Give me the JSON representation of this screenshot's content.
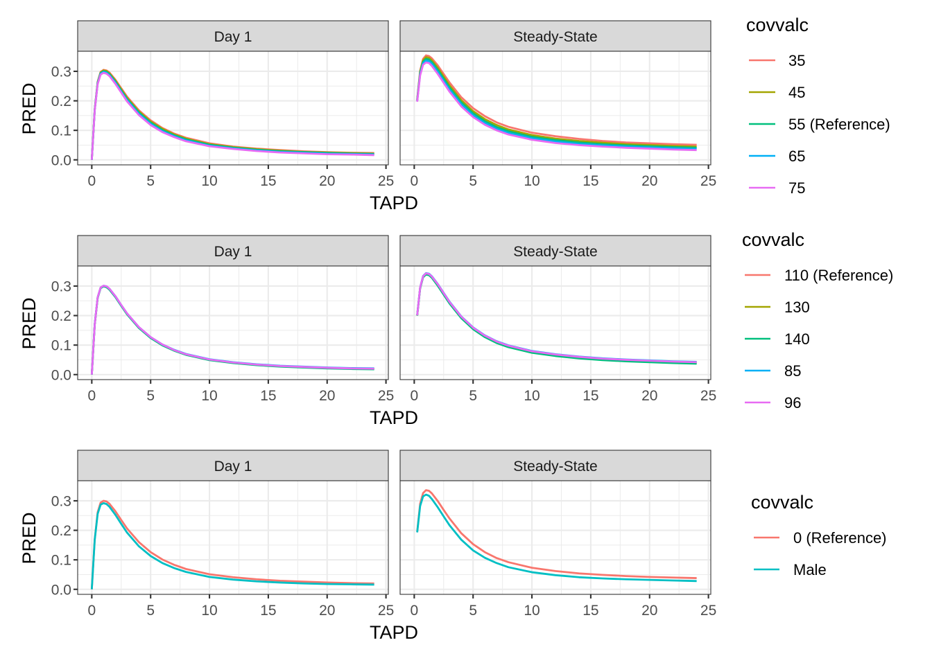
{
  "chart_data": {
    "type": "line",
    "layout": "3 rows x 2 facets, each row with its own legend",
    "x_label": "TAPD",
    "y_label": "PRED",
    "x_ticks": [
      0,
      5,
      10,
      15,
      20,
      25
    ],
    "x_tick_labels": [
      "0",
      "5",
      "10",
      "15",
      "20",
      "25"
    ],
    "y_ticks": [
      0.0,
      0.1,
      0.2,
      0.3
    ],
    "y_tick_labels": [
      "0.0",
      "0.1",
      "0.2",
      "0.3"
    ],
    "xlim": [
      -1.2,
      25.2
    ],
    "ylim": [
      -0.017,
      0.368
    ],
    "grid": true,
    "facets": [
      "Day 1",
      "Steady-State"
    ],
    "legend_placement": "right",
    "time_points": {
      "Day 1": [
        0,
        0.25,
        0.5,
        0.75,
        1,
        1.25,
        1.5,
        2,
        2.5,
        3,
        4,
        5,
        6,
        7,
        8,
        10,
        12,
        14,
        16,
        18,
        20,
        22,
        24
      ],
      "Steady-State": [
        0.25,
        0.5,
        0.75,
        1,
        1.25,
        1.5,
        2,
        2.5,
        3,
        4,
        5,
        6,
        7,
        8,
        10,
        12,
        14,
        16,
        18,
        20,
        22,
        24
      ]
    },
    "rows": [
      {
        "legend_title": "covvalc",
        "series": [
          {
            "name": "35",
            "color": "#F8766D",
            "Day 1": [
              0,
              0.172,
              0.265,
              0.298,
              0.305,
              0.303,
              0.296,
              0.272,
              0.243,
              0.214,
              0.168,
              0.134,
              0.108,
              0.089,
              0.075,
              0.056,
              0.045,
              0.038,
              0.033,
              0.029,
              0.026,
              0.024,
              0.023
            ],
            "Steady-State": [
              0.205,
              0.302,
              0.342,
              0.354,
              0.352,
              0.344,
              0.32,
              0.291,
              0.262,
              0.212,
              0.175,
              0.148,
              0.127,
              0.112,
              0.092,
              0.08,
              0.071,
              0.064,
              0.059,
              0.056,
              0.053,
              0.051
            ]
          },
          {
            "name": "45",
            "color": "#A3A500",
            "Day 1": [
              0,
              0.171,
              0.263,
              0.296,
              0.303,
              0.301,
              0.293,
              0.269,
              0.239,
              0.21,
              0.164,
              0.13,
              0.105,
              0.086,
              0.072,
              0.053,
              0.043,
              0.036,
              0.031,
              0.027,
              0.025,
              0.023,
              0.021
            ],
            "Steady-State": [
              0.203,
              0.298,
              0.337,
              0.348,
              0.346,
              0.337,
              0.312,
              0.282,
              0.252,
              0.202,
              0.165,
              0.138,
              0.118,
              0.103,
              0.084,
              0.072,
              0.064,
              0.058,
              0.053,
              0.05,
              0.047,
              0.045
            ]
          },
          {
            "name": "55 (Reference)",
            "color": "#00BF7D",
            "Day 1": [
              0,
              0.17,
              0.261,
              0.294,
              0.3,
              0.298,
              0.29,
              0.265,
              0.235,
              0.206,
              0.16,
              0.126,
              0.101,
              0.083,
              0.069,
              0.051,
              0.041,
              0.034,
              0.029,
              0.026,
              0.023,
              0.021,
              0.02
            ],
            "Steady-State": [
              0.201,
              0.294,
              0.332,
              0.342,
              0.34,
              0.331,
              0.305,
              0.275,
              0.245,
              0.195,
              0.158,
              0.131,
              0.111,
              0.097,
              0.078,
              0.067,
              0.059,
              0.053,
              0.049,
              0.046,
              0.043,
              0.041
            ]
          },
          {
            "name": "65",
            "color": "#00B0F6",
            "Day 1": [
              0,
              0.169,
              0.259,
              0.292,
              0.298,
              0.295,
              0.287,
              0.262,
              0.231,
              0.202,
              0.156,
              0.122,
              0.097,
              0.08,
              0.066,
              0.048,
              0.039,
              0.032,
              0.027,
              0.024,
              0.021,
              0.02,
              0.018
            ],
            "Steady-State": [
              0.199,
              0.29,
              0.327,
              0.336,
              0.334,
              0.325,
              0.298,
              0.268,
              0.238,
              0.188,
              0.151,
              0.125,
              0.105,
              0.091,
              0.073,
              0.062,
              0.054,
              0.049,
              0.045,
              0.042,
              0.039,
              0.037
            ]
          },
          {
            "name": "75",
            "color": "#E76BF3",
            "Day 1": [
              0,
              0.168,
              0.257,
              0.289,
              0.295,
              0.292,
              0.284,
              0.258,
              0.228,
              0.198,
              0.152,
              0.118,
              0.094,
              0.077,
              0.063,
              0.046,
              0.037,
              0.03,
              0.025,
              0.022,
              0.019,
              0.018,
              0.016
            ],
            "Steady-State": [
              0.197,
              0.286,
              0.322,
              0.33,
              0.328,
              0.318,
              0.291,
              0.261,
              0.231,
              0.181,
              0.145,
              0.119,
              0.1,
              0.086,
              0.068,
              0.057,
              0.05,
              0.045,
              0.041,
              0.038,
              0.035,
              0.033
            ]
          }
        ]
      },
      {
        "legend_title": "covvalc",
        "series": [
          {
            "name": "110 (Reference)",
            "color": "#F8766D",
            "Day 1": [
              0,
              0.17,
              0.261,
              0.294,
              0.3,
              0.298,
              0.29,
              0.265,
              0.235,
              0.206,
              0.16,
              0.126,
              0.101,
              0.083,
              0.069,
              0.051,
              0.041,
              0.034,
              0.029,
              0.026,
              0.023,
              0.021,
              0.02
            ],
            "Steady-State": [
              0.201,
              0.294,
              0.332,
              0.342,
              0.34,
              0.331,
              0.305,
              0.275,
              0.245,
              0.195,
              0.158,
              0.131,
              0.111,
              0.097,
              0.078,
              0.067,
              0.059,
              0.053,
              0.049,
              0.046,
              0.043,
              0.041
            ]
          },
          {
            "name": "130",
            "color": "#A3A500",
            "Day 1": [
              0,
              0.17,
              0.261,
              0.294,
              0.3,
              0.297,
              0.289,
              0.264,
              0.234,
              0.205,
              0.159,
              0.125,
              0.1,
              0.082,
              0.068,
              0.05,
              0.04,
              0.033,
              0.028,
              0.025,
              0.022,
              0.02,
              0.019
            ],
            "Steady-State": [
              0.2,
              0.293,
              0.331,
              0.341,
              0.338,
              0.329,
              0.303,
              0.273,
              0.243,
              0.193,
              0.156,
              0.129,
              0.109,
              0.095,
              0.076,
              0.065,
              0.057,
              0.051,
              0.047,
              0.044,
              0.041,
              0.039
            ]
          },
          {
            "name": "140",
            "color": "#00BF7D",
            "Day 1": [
              0,
              0.17,
              0.26,
              0.293,
              0.299,
              0.296,
              0.288,
              0.263,
              0.233,
              0.204,
              0.158,
              0.124,
              0.099,
              0.081,
              0.067,
              0.049,
              0.039,
              0.032,
              0.027,
              0.024,
              0.021,
              0.019,
              0.018
            ],
            "Steady-State": [
              0.2,
              0.292,
              0.33,
              0.339,
              0.337,
              0.328,
              0.301,
              0.271,
              0.241,
              0.191,
              0.154,
              0.127,
              0.107,
              0.093,
              0.074,
              0.063,
              0.055,
              0.049,
              0.045,
              0.042,
              0.039,
              0.037
            ]
          },
          {
            "name": "85",
            "color": "#00B0F6",
            "Day 1": [
              0,
              0.171,
              0.262,
              0.295,
              0.301,
              0.299,
              0.291,
              0.266,
              0.236,
              0.207,
              0.161,
              0.127,
              0.102,
              0.084,
              0.07,
              0.052,
              0.042,
              0.035,
              0.03,
              0.027,
              0.024,
              0.022,
              0.021
            ],
            "Steady-State": [
              0.202,
              0.295,
              0.334,
              0.344,
              0.342,
              0.333,
              0.307,
              0.277,
              0.247,
              0.197,
              0.16,
              0.133,
              0.113,
              0.099,
              0.08,
              0.069,
              0.061,
              0.055,
              0.051,
              0.048,
              0.045,
              0.043
            ]
          },
          {
            "name": "96",
            "color": "#E76BF3",
            "Day 1": [
              0,
              0.17,
              0.262,
              0.295,
              0.301,
              0.299,
              0.291,
              0.266,
              0.236,
              0.207,
              0.161,
              0.127,
              0.102,
              0.083,
              0.069,
              0.051,
              0.041,
              0.034,
              0.029,
              0.026,
              0.023,
              0.021,
              0.02
            ],
            "Steady-State": [
              0.201,
              0.295,
              0.333,
              0.343,
              0.341,
              0.332,
              0.306,
              0.276,
              0.246,
              0.196,
              0.159,
              0.132,
              0.112,
              0.098,
              0.079,
              0.068,
              0.06,
              0.054,
              0.05,
              0.047,
              0.044,
              0.042
            ]
          }
        ]
      },
      {
        "legend_title": "covvalc",
        "series": [
          {
            "name": "0 (Reference)",
            "color": "#F8766D",
            "Day 1": [
              0,
              0.17,
              0.261,
              0.294,
              0.3,
              0.298,
              0.29,
              0.265,
              0.235,
              0.206,
              0.16,
              0.126,
              0.101,
              0.083,
              0.069,
              0.051,
              0.041,
              0.034,
              0.029,
              0.026,
              0.023,
              0.021,
              0.02
            ],
            "Steady-State": [
              0.195,
              0.29,
              0.326,
              0.336,
              0.334,
              0.325,
              0.299,
              0.269,
              0.24,
              0.19,
              0.153,
              0.126,
              0.106,
              0.092,
              0.073,
              0.062,
              0.054,
              0.049,
              0.045,
              0.042,
              0.04,
              0.038
            ]
          },
          {
            "name": "Male",
            "color": "#00BFC4",
            "Day 1": [
              0,
              0.168,
              0.256,
              0.287,
              0.292,
              0.289,
              0.28,
              0.253,
              0.222,
              0.192,
              0.146,
              0.113,
              0.089,
              0.072,
              0.059,
              0.042,
              0.033,
              0.027,
              0.023,
              0.02,
              0.018,
              0.017,
              0.016
            ],
            "Steady-State": [
              0.193,
              0.282,
              0.315,
              0.321,
              0.317,
              0.306,
              0.278,
              0.247,
              0.217,
              0.168,
              0.132,
              0.107,
              0.089,
              0.075,
              0.058,
              0.048,
              0.041,
              0.037,
              0.034,
              0.032,
              0.03,
              0.028
            ]
          }
        ]
      }
    ]
  }
}
